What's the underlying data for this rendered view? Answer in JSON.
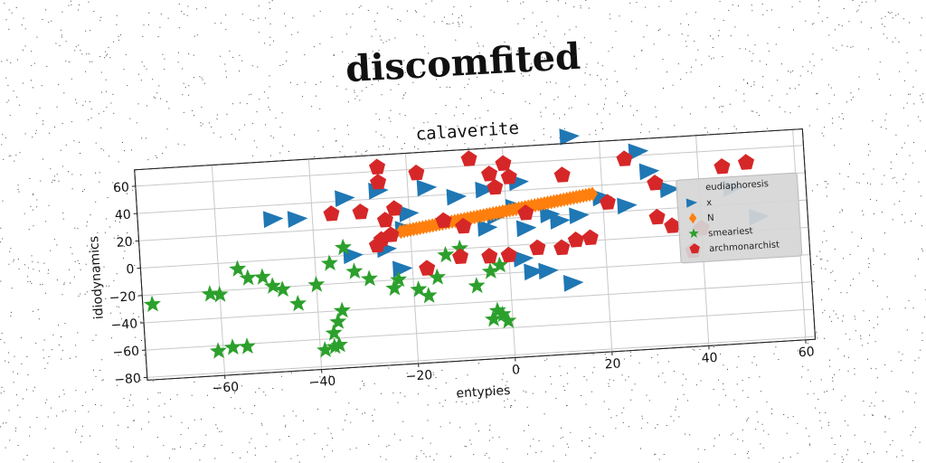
{
  "page_title": "discomfited",
  "chart_data": {
    "type": "scatter",
    "title": "calaverite",
    "xlabel": "entypies",
    "ylabel": "idiodynamics",
    "xlim": [
      -76,
      62
    ],
    "ylim": [
      -82,
      72
    ],
    "xticks": [
      -60,
      -40,
      -20,
      0,
      20,
      40,
      60
    ],
    "yticks": [
      -80,
      -60,
      -40,
      -20,
      0,
      20,
      40,
      60
    ],
    "grid": true,
    "legend": {
      "title": "eudiaphoresis",
      "placement": "right"
    },
    "series": [
      {
        "name": "x",
        "marker": "triangle-right",
        "color": "#1f77b4",
        "points": [
          [
            -48,
            30
          ],
          [
            -43,
            29
          ],
          [
            -33,
            42
          ],
          [
            -26,
            46
          ],
          [
            -20,
            28
          ],
          [
            -21,
            17
          ],
          [
            -16,
            46
          ],
          [
            -10,
            38
          ],
          [
            -4,
            42
          ],
          [
            -2,
            22
          ],
          [
            3,
            46
          ],
          [
            2,
            28
          ],
          [
            4,
            12
          ],
          [
            11,
            16
          ],
          [
            9,
            21
          ],
          [
            15,
            19
          ],
          [
            20,
            31
          ],
          [
            25,
            24
          ],
          [
            28,
            63
          ],
          [
            30,
            48
          ],
          [
            34,
            34
          ],
          [
            14,
            77
          ],
          [
            -32,
            0
          ],
          [
            -25,
            3
          ],
          [
            -22,
            -12
          ],
          [
            3,
            -10
          ],
          [
            5,
            -20
          ],
          [
            8,
            -20
          ],
          [
            13,
            -30
          ],
          [
            47,
            32
          ],
          [
            52,
            10
          ],
          [
            -4,
            14
          ]
        ]
      },
      {
        "name": "N",
        "marker": "diamond",
        "color": "#ff7f0e",
        "line": [
          [
            -22,
            15
          ],
          [
            18,
            34
          ]
        ]
      },
      {
        "name": "smeariest",
        "marker": "star",
        "color": "#2ca02c",
        "points": [
          [
            -74,
            -27
          ],
          [
            -62,
            -22
          ],
          [
            -60,
            -23
          ],
          [
            -61,
            -64
          ],
          [
            -58,
            -62
          ],
          [
            -55,
            -62
          ],
          [
            -56,
            -5
          ],
          [
            -54,
            -12
          ],
          [
            -51,
            -12
          ],
          [
            -49,
            -19
          ],
          [
            -47,
            -22
          ],
          [
            -44,
            -33
          ],
          [
            -40,
            -20
          ],
          [
            -37,
            -5
          ],
          [
            -34,
            6
          ],
          [
            -32,
            -12
          ],
          [
            -29,
            -18
          ],
          [
            -37,
            -56
          ],
          [
            -36,
            -48
          ],
          [
            -35,
            -40
          ],
          [
            -37,
            -66
          ],
          [
            -39,
            -68
          ],
          [
            -36,
            -65
          ],
          [
            -24,
            -26
          ],
          [
            -19,
            -28
          ],
          [
            -17,
            -33
          ],
          [
            -15,
            -20
          ],
          [
            -13,
            -4
          ],
          [
            -10,
            0
          ],
          [
            -7,
            -28
          ],
          [
            -4,
            -18
          ],
          [
            -2,
            -14
          ],
          [
            -3,
            -47
          ],
          [
            -2,
            -50
          ],
          [
            -4,
            -53
          ],
          [
            -1,
            -55
          ],
          [
            -23,
            -20
          ]
        ]
      },
      {
        "name": "archmonarchist",
        "marker": "pentagon",
        "color": "#d62728",
        "points": [
          [
            -26,
            63
          ],
          [
            -26,
            52
          ],
          [
            -18,
            57
          ],
          [
            -7,
            65
          ],
          [
            -3,
            53
          ],
          [
            -2,
            43
          ],
          [
            0,
            60
          ],
          [
            1,
            50
          ],
          [
            4,
            23
          ],
          [
            -9,
            16
          ],
          [
            -13,
            21
          ],
          [
            -25,
            24
          ],
          [
            -24,
            13
          ],
          [
            -36,
            31
          ],
          [
            -30,
            31
          ],
          [
            -23,
            32
          ],
          [
            12,
            49
          ],
          [
            21,
            27
          ],
          [
            25,
            58
          ],
          [
            31,
            39
          ],
          [
            31,
            14
          ],
          [
            34,
            7
          ],
          [
            38,
            -12
          ],
          [
            40,
            4
          ],
          [
            45,
            48
          ],
          [
            50,
            50
          ],
          [
            17,
            2
          ],
          [
            14,
            1
          ],
          [
            11,
            -4
          ],
          [
            6,
            -3
          ],
          [
            0,
            -7
          ],
          [
            -4,
            -7
          ],
          [
            -10,
            -6
          ],
          [
            -17,
            -13
          ],
          [
            -26,
            10
          ],
          [
            -27,
            6
          ]
        ]
      }
    ]
  }
}
